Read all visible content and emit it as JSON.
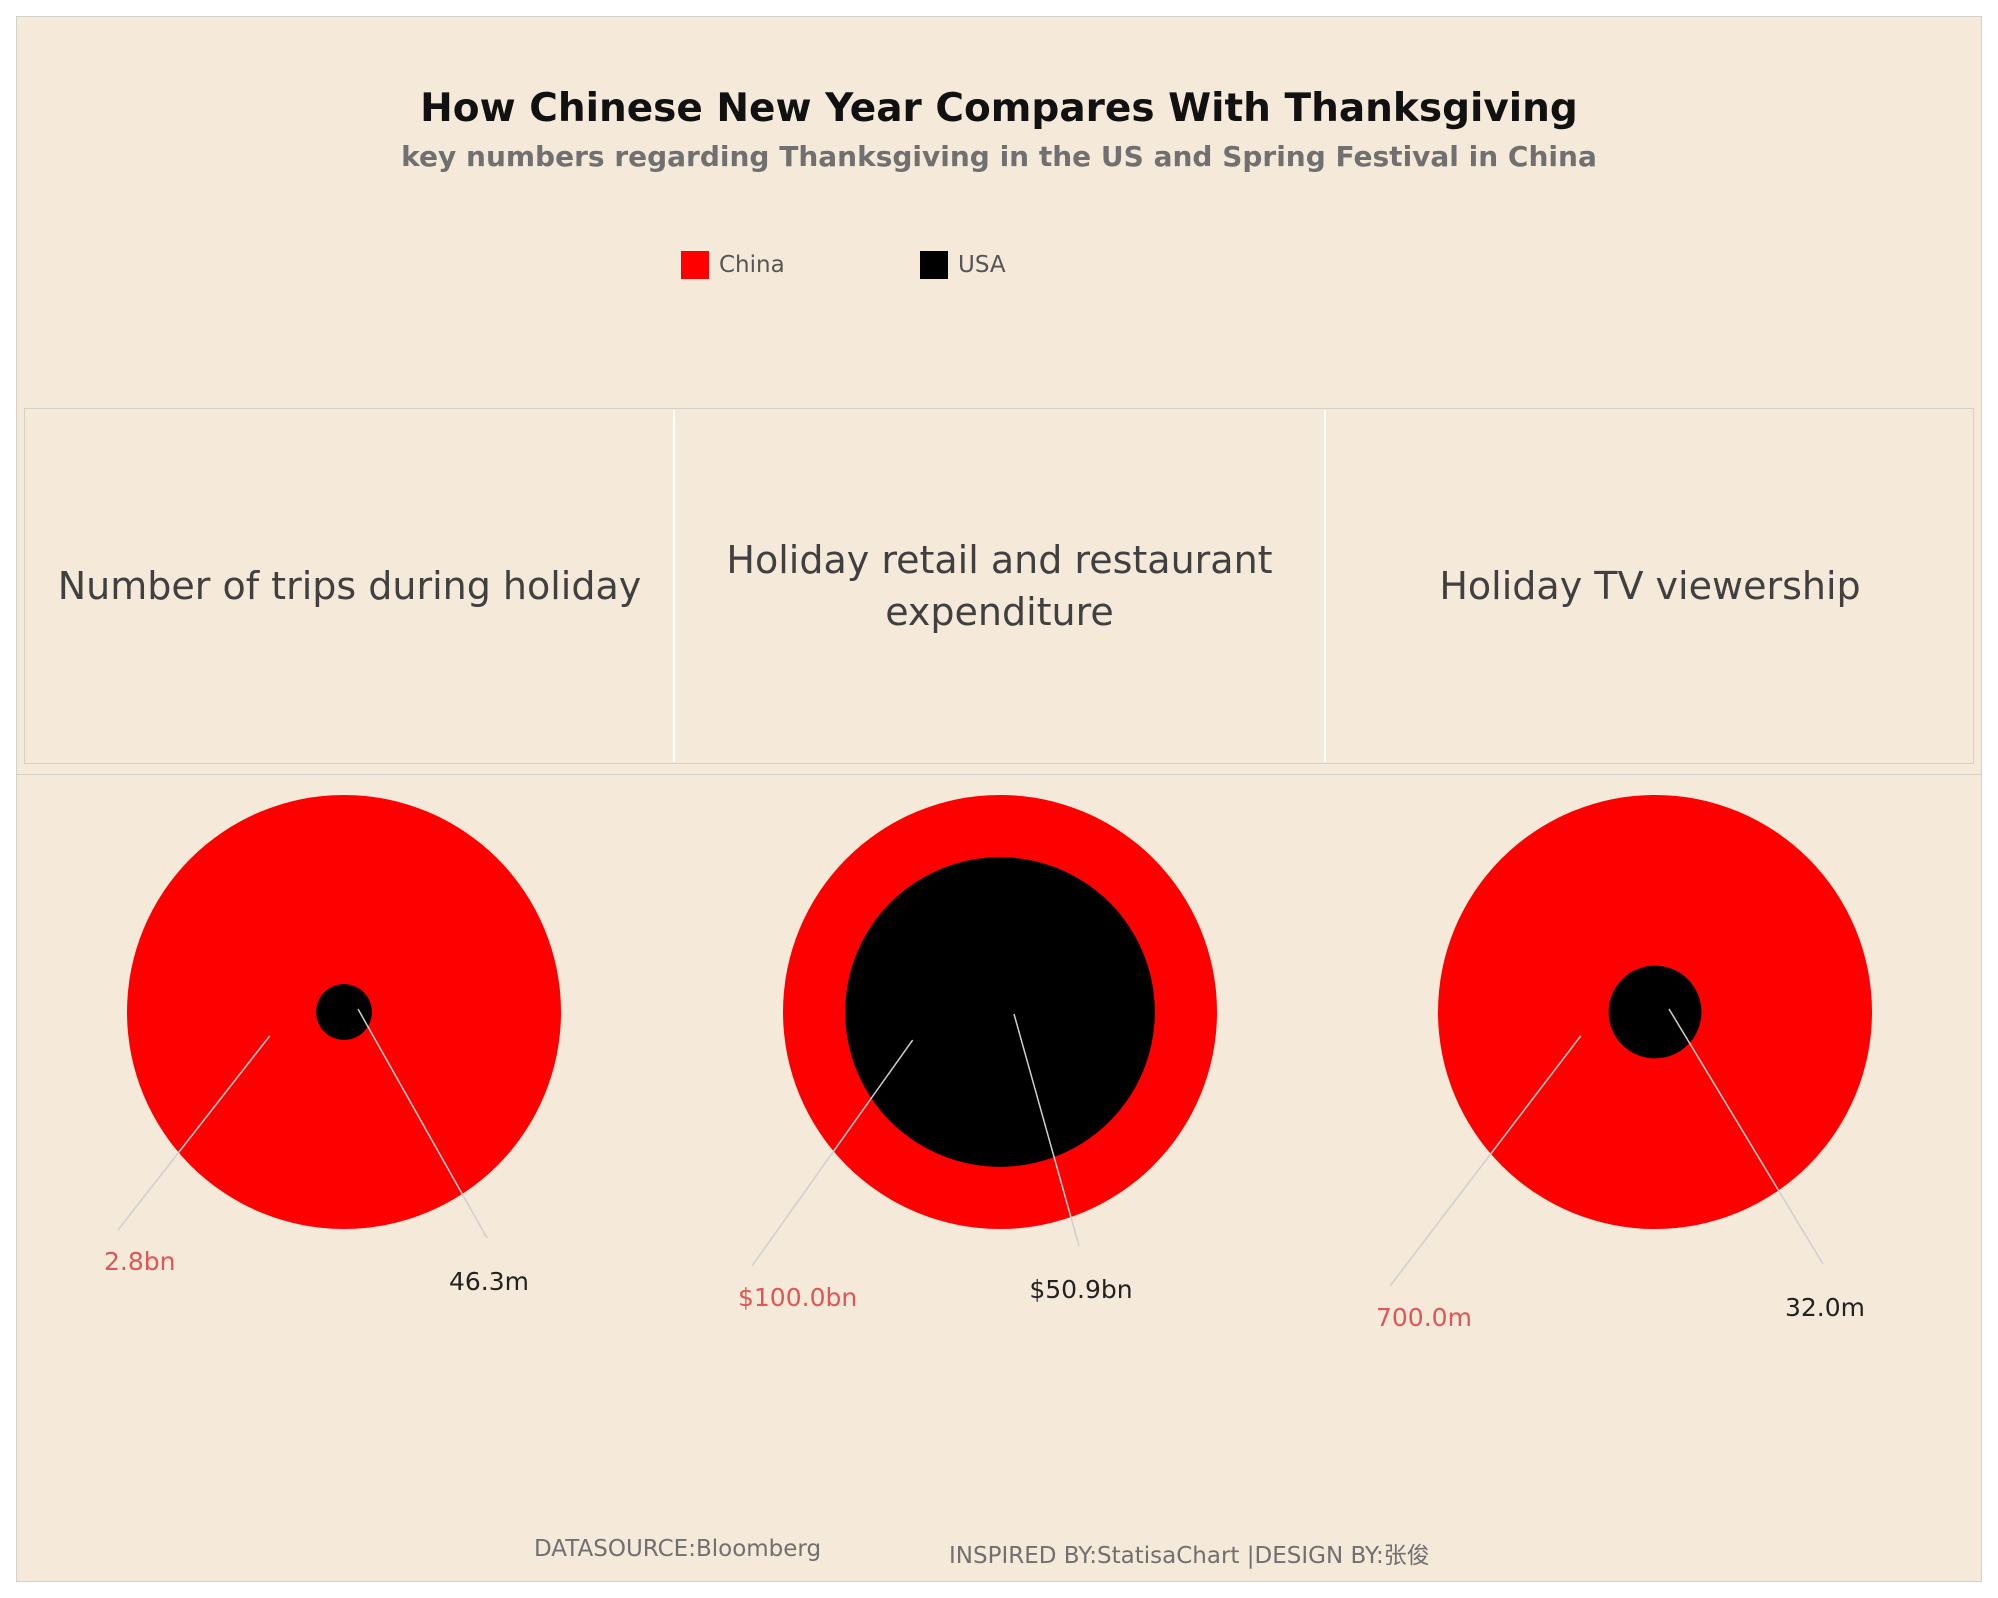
{
  "chart_data": {
    "type": "bubble",
    "title": "How Chinese New Year Compares With Thanksgiving",
    "subtitle": "key numbers regarding Thanksgiving in the US and Spring Festival in China",
    "legend": [
      {
        "name": "China",
        "color": "#ff0000"
      },
      {
        "name": "USA",
        "color": "#000000"
      }
    ],
    "panels": [
      {
        "category": "Number of trips during holiday",
        "china": {
          "value": 2800000000,
          "label": "2.8bn"
        },
        "usa": {
          "value": 46300000,
          "label": "46.3m"
        }
      },
      {
        "category": "Holiday retail and restaurant expenditure",
        "china": {
          "value": 100000000000,
          "label": "$100.0bn"
        },
        "usa": {
          "value": 50900000000,
          "label": "$50.9bn"
        }
      },
      {
        "category": "Holiday TV viewership",
        "china": {
          "value": 700000000,
          "label": "700.0m"
        },
        "usa": {
          "value": 32000000,
          "label": "32.0m"
        }
      }
    ]
  },
  "footer": {
    "source": "DATASOURCE:Bloomberg",
    "credits": "INSPIRED BY:StatisaChart |DESIGN BY:张俊"
  },
  "colors": {
    "china": "#ff0000",
    "usa": "#000000",
    "china_label": "#e05555",
    "usa_label": "#222222",
    "background": "#f5e9d9"
  }
}
